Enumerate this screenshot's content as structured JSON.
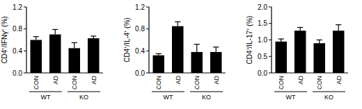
{
  "chart_data": [
    {
      "type": "bar",
      "y_label": "CD4⁺/IFNγ⁺ (%)",
      "categories": [
        "CON",
        "AD",
        "CON",
        "AD"
      ],
      "group_labels": [
        "WT",
        "KO"
      ],
      "values": [
        0.6,
        0.7,
        0.45,
        0.63
      ],
      "errors": [
        0.06,
        0.09,
        0.1,
        0.04
      ],
      "color": "#000000",
      "ylim": [
        0,
        1.2
      ],
      "yticks": [
        {
          "value": 0,
          "label": "0.0"
        },
        0.4,
        0.8,
        1.2
      ],
      "grid": false
    },
    {
      "type": "bar",
      "y_label": "CD4⁺/IL-4⁺ (%)",
      "categories": [
        "CON",
        "AD",
        "CON",
        "AD"
      ],
      "group_labels": [
        "WT",
        "KO"
      ],
      "values": [
        0.32,
        0.85,
        0.38,
        0.38
      ],
      "errors": [
        0.03,
        0.08,
        0.14,
        0.09
      ],
      "color": "#000000",
      "ylim": [
        0,
        1.2
      ],
      "yticks": [
        {
          "value": 0,
          "label": "0.0"
        },
        0.4,
        0.8,
        1.2
      ],
      "grid": false
    },
    {
      "type": "bar",
      "y_label": "CD4⁺/IL-17⁺ (%)",
      "categories": [
        "CON",
        "AD",
        "CON",
        "AD"
      ],
      "group_labels": [
        "WT",
        "KO"
      ],
      "values": [
        0.95,
        1.28,
        0.9,
        1.28
      ],
      "errors": [
        0.08,
        0.1,
        0.1,
        0.18
      ],
      "color": "#000000",
      "ylim": [
        0,
        2.0
      ],
      "yticks": [
        {
          "value": 0,
          "label": "0.0"
        },
        0.5,
        {
          "value": 1,
          "label": "1.0"
        },
        1.5,
        {
          "value": 2,
          "label": "2.0"
        }
      ],
      "grid": false
    }
  ]
}
